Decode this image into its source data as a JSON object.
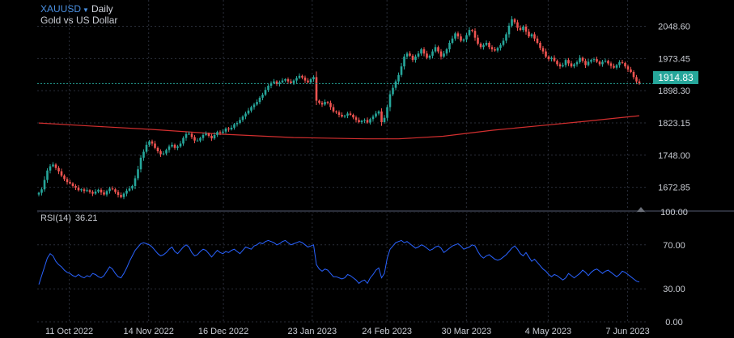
{
  "header": {
    "symbol": "XAUUSD",
    "interval": "Daily",
    "description": "Gold vs US Dollar"
  },
  "price_axis": {
    "current_price": "1914.83"
  },
  "rsi": {
    "label": "RSI(14)",
    "value": "36.21"
  },
  "colors": {
    "up": "#26a69a",
    "down": "#ef5350",
    "moving_average": "#d32f2f",
    "rsi_line": "#2962ff",
    "current_price_line": "#26a69a",
    "grid": "#2a2e39"
  },
  "chart_data": [
    {
      "type": "candlestick",
      "series_name": "XAUUSD",
      "ylim": [
        1625,
        2110
      ],
      "yticks": [
        "1672.85",
        "1748.00",
        "1823.15",
        "1898.30",
        "1973.45",
        "2048.60"
      ],
      "x_start_date": "2022-09-28",
      "x_end_date": "2023-06-12",
      "xtick_labels": [
        "11 Oct 2022",
        "14 Nov 2022",
        "16 Dec 2022",
        "23 Jan 2023",
        "24 Feb 2023",
        "30 Mar 2023",
        "4 May 2023",
        "7 Jun 2023"
      ],
      "grid": true,
      "current_price": 1914.83,
      "close": [
        1660,
        1668,
        1690,
        1712,
        1722,
        1726,
        1718,
        1710,
        1700,
        1692,
        1685,
        1682,
        1676,
        1672,
        1666,
        1668,
        1664,
        1666,
        1662,
        1658,
        1663,
        1667,
        1661,
        1656,
        1664,
        1670,
        1668,
        1662,
        1655,
        1650,
        1658,
        1665,
        1670,
        1676,
        1694,
        1715,
        1742,
        1756,
        1772,
        1780,
        1775,
        1765,
        1757,
        1750,
        1752,
        1760,
        1768,
        1772,
        1765,
        1768,
        1775,
        1788,
        1797,
        1798,
        1790,
        1782,
        1782,
        1788,
        1795,
        1798,
        1793,
        1787,
        1795,
        1802,
        1800,
        1803,
        1810,
        1808,
        1812,
        1820,
        1823,
        1830,
        1838,
        1845,
        1852,
        1860,
        1866,
        1872,
        1882,
        1889,
        1900,
        1910,
        1916,
        1920,
        1914,
        1918,
        1922,
        1925,
        1920,
        1916,
        1922,
        1928,
        1933,
        1929,
        1922,
        1918,
        1925,
        1930,
        1875,
        1870,
        1866,
        1872,
        1870,
        1860,
        1850,
        1848,
        1842,
        1838,
        1840,
        1845,
        1842,
        1836,
        1830,
        1825,
        1828,
        1830,
        1824,
        1832,
        1838,
        1845,
        1850,
        1825,
        1835,
        1860,
        1890,
        1905,
        1920,
        1935,
        1955,
        1978,
        1985,
        1980,
        1970,
        1978,
        1985,
        1995,
        1985,
        1975,
        1980,
        1990,
        2000,
        1990,
        1978,
        1985,
        1995,
        2010,
        2020,
        2032,
        2025,
        2015,
        2018,
        2028,
        2040,
        2038,
        2022,
        2008,
        2000,
        2005,
        2010,
        2000,
        1995,
        1992,
        1998,
        2005,
        2015,
        2030,
        2050,
        2065,
        2058,
        2045,
        2040,
        2048,
        2036,
        2025,
        2030,
        2020,
        2010,
        1998,
        1990,
        1978,
        1972,
        1975,
        1968,
        1960,
        1955,
        1958,
        1970,
        1962,
        1955,
        1960,
        1965,
        1975,
        1968,
        1958,
        1966,
        1970,
        1972,
        1966,
        1960,
        1966,
        1968,
        1962,
        1956,
        1952,
        1958,
        1965,
        1963,
        1955,
        1948,
        1942,
        1930,
        1920,
        1914.83
      ],
      "moving_average": [
        {
          "x": "2022-09-28",
          "y": 1823
        },
        {
          "x": "2022-10-20",
          "y": 1816
        },
        {
          "x": "2022-11-15",
          "y": 1808
        },
        {
          "x": "2022-12-15",
          "y": 1797
        },
        {
          "x": "2023-01-15",
          "y": 1789
        },
        {
          "x": "2023-02-15",
          "y": 1786
        },
        {
          "x": "2023-03-01",
          "y": 1786
        },
        {
          "x": "2023-03-20",
          "y": 1792
        },
        {
          "x": "2023-04-10",
          "y": 1806
        },
        {
          "x": "2023-05-01",
          "y": 1817
        },
        {
          "x": "2023-05-20",
          "y": 1827
        },
        {
          "x": "2023-06-12",
          "y": 1840
        }
      ]
    },
    {
      "type": "line",
      "series_name": "RSI(14)",
      "ylim": [
        0,
        100
      ],
      "yticks": [
        "100.00",
        "70.00",
        "30.00",
        "0.00"
      ],
      "grid": true,
      "y": [
        34,
        42,
        50,
        58,
        62,
        60,
        55,
        52,
        50,
        47,
        45,
        44,
        42,
        41,
        43,
        41,
        40,
        42,
        41,
        44,
        43,
        41,
        40,
        42,
        46,
        50,
        48,
        44,
        41,
        40,
        44,
        49,
        55,
        60,
        65,
        68,
        71,
        72,
        71,
        70,
        68,
        65,
        62,
        60,
        61,
        63,
        66,
        68,
        64,
        62,
        65,
        68,
        70,
        68,
        63,
        60,
        61,
        64,
        66,
        65,
        62,
        59,
        62,
        65,
        63,
        62,
        64,
        63,
        65,
        66,
        64,
        62,
        65,
        68,
        67,
        66,
        69,
        70,
        72,
        71,
        73,
        74,
        73,
        72,
        70,
        71,
        73,
        74,
        72,
        70,
        71,
        72,
        73,
        72,
        70,
        68,
        69,
        70,
        52,
        48,
        46,
        48,
        47,
        44,
        41,
        41,
        40,
        39,
        40,
        43,
        42,
        40,
        38,
        35,
        37,
        38,
        35,
        40,
        43,
        47,
        49,
        40,
        44,
        58,
        66,
        69,
        72,
        73,
        74,
        72,
        73,
        71,
        69,
        67,
        68,
        70,
        69,
        67,
        65,
        66,
        68,
        69,
        67,
        63,
        65,
        67,
        69,
        70,
        71,
        69,
        66,
        67,
        68,
        70,
        69,
        64,
        60,
        58,
        60,
        61,
        59,
        57,
        56,
        57,
        59,
        61,
        64,
        67,
        69,
        66,
        62,
        60,
        63,
        59,
        55,
        57,
        54,
        51,
        48,
        46,
        43,
        41,
        43,
        42,
        40,
        38,
        40,
        44,
        42,
        40,
        42,
        44,
        47,
        45,
        42,
        45,
        47,
        48,
        46,
        44,
        46,
        47,
        45,
        43,
        41,
        43,
        46,
        45,
        43,
        41,
        39,
        37,
        36.21
      ]
    }
  ]
}
